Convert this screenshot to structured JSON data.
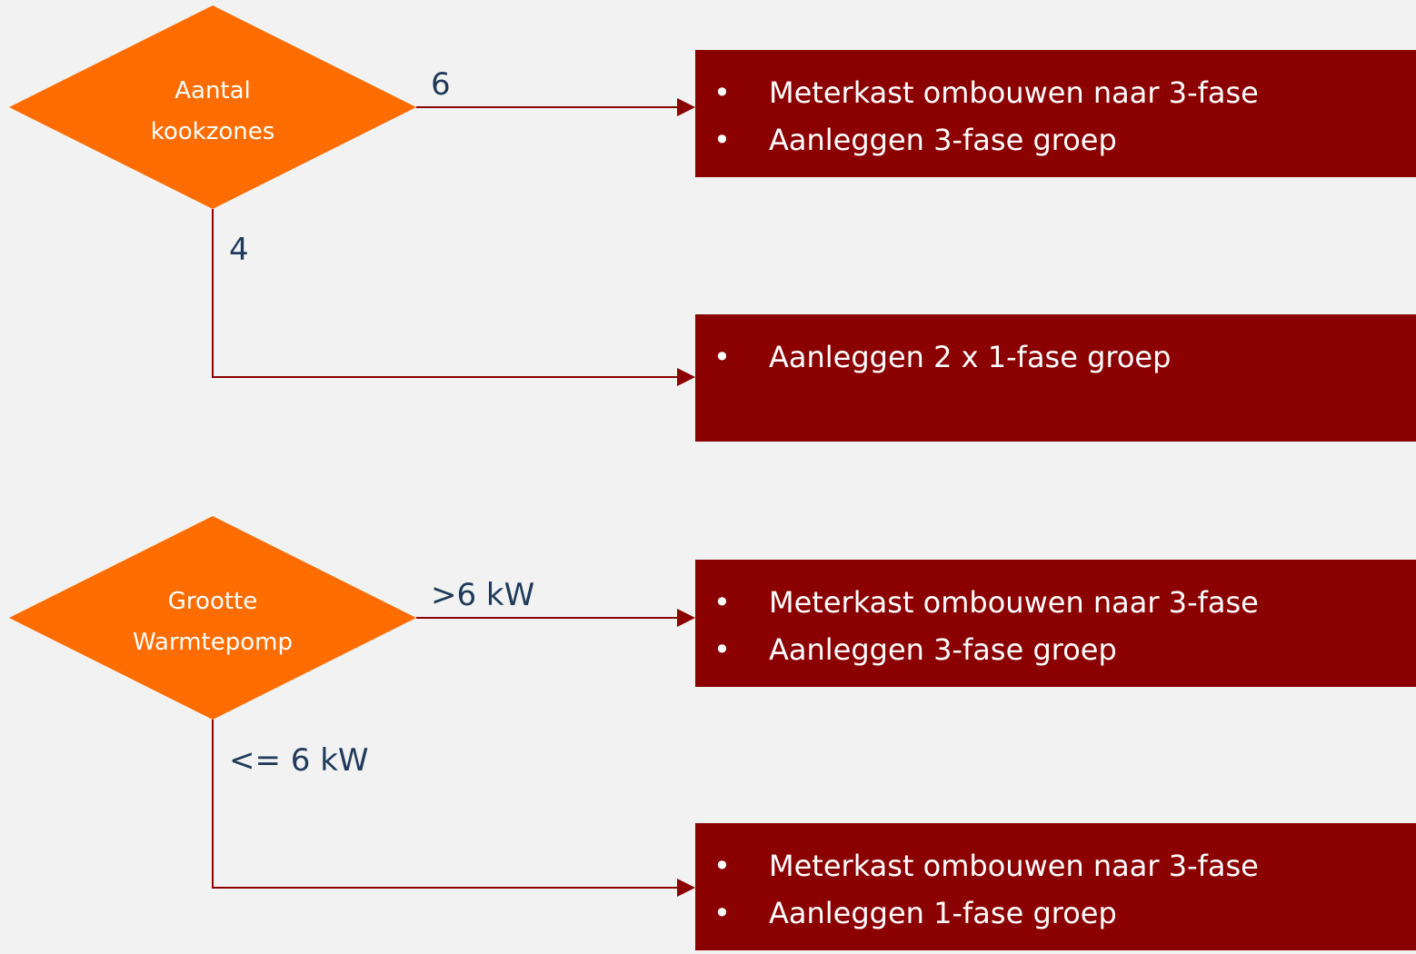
{
  "decisions": [
    {
      "label": [
        "Aantal",
        "kookzones"
      ],
      "right": {
        "label": "6",
        "items": [
          "Meterkast ombouwen naar 3-fase",
          "Aanleggen 3-fase groep"
        ]
      },
      "down": {
        "label": "4",
        "items": [
          "Aanleggen 2 x 1-fase groep"
        ]
      }
    },
    {
      "label": [
        "Grootte",
        "Warmtepomp"
      ],
      "right": {
        "label": ">6 kW",
        "items": [
          "Meterkast ombouwen naar 3-fase",
          "Aanleggen 3-fase groep"
        ]
      },
      "down": {
        "label": "<= 6 kW",
        "items": [
          "Meterkast ombouwen naar 3-fase",
          "Aanleggen 1-fase groep"
        ]
      }
    }
  ]
}
